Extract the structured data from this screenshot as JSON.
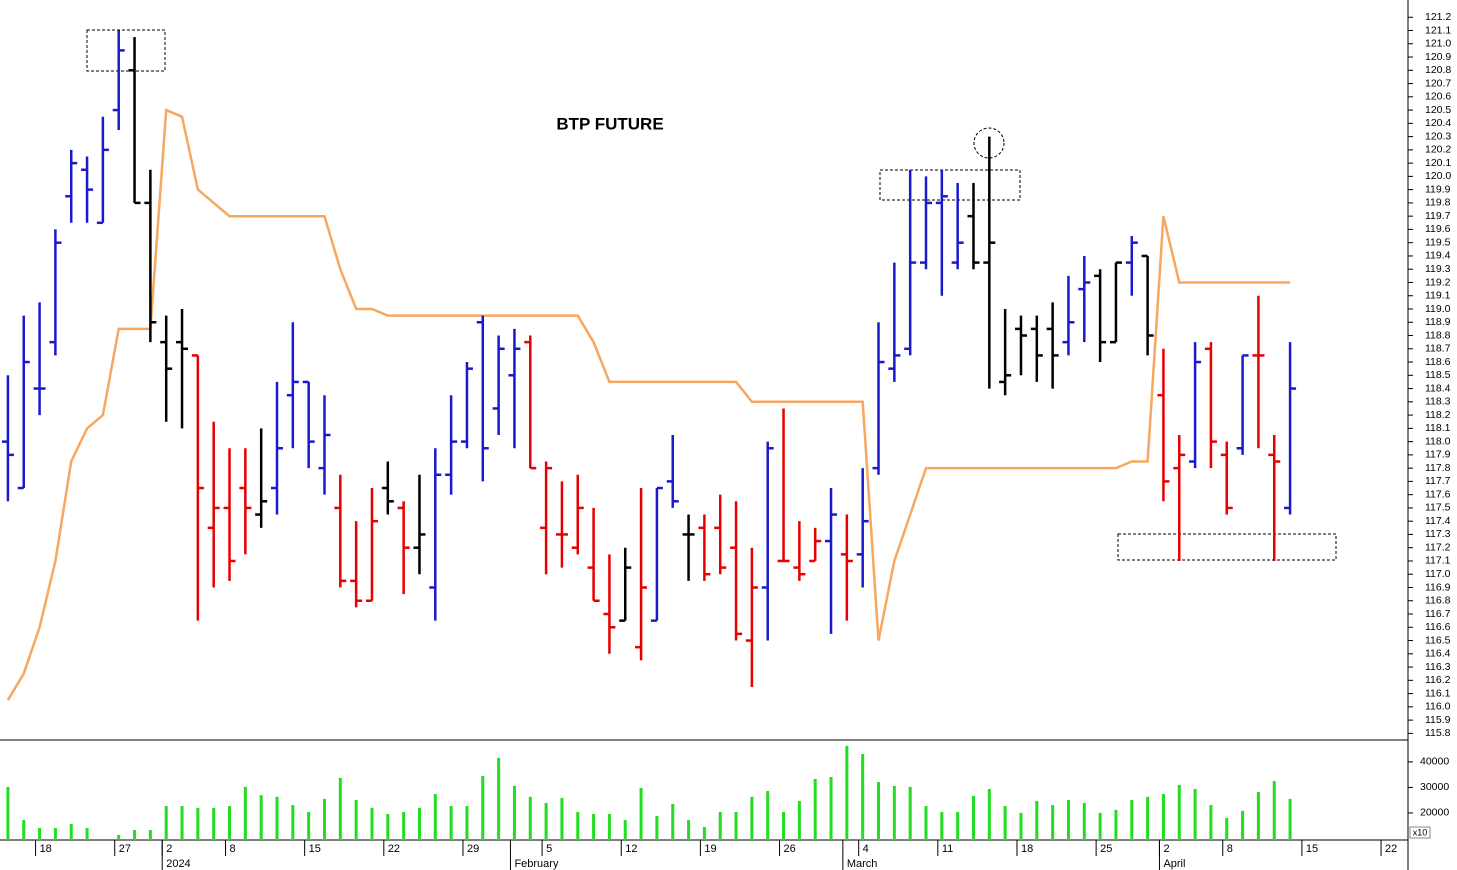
{
  "chart_data": [
    {
      "type": "ohlc",
      "title": "BTP FUTURE",
      "xlim": [
        -0.5,
        88.45
      ],
      "xticks": [
        {
          "value": 2,
          "label": "18"
        },
        {
          "value": 7,
          "label": "27"
        },
        {
          "value": 10,
          "label": "2"
        },
        {
          "value": 14,
          "label": "8"
        },
        {
          "value": 19,
          "label": "15"
        },
        {
          "value": 24,
          "label": "22"
        },
        {
          "value": 29,
          "label": "29"
        },
        {
          "value": 34,
          "label": "5"
        },
        {
          "value": 39,
          "label": "12"
        },
        {
          "value": 44,
          "label": "19"
        },
        {
          "value": 49,
          "label": "26"
        },
        {
          "value": 54,
          "label": "4"
        },
        {
          "value": 59,
          "label": "11"
        },
        {
          "value": 64,
          "label": "18"
        },
        {
          "value": 69,
          "label": "25"
        },
        {
          "value": 73,
          "label": "2"
        },
        {
          "value": 77,
          "label": "8"
        },
        {
          "value": 82,
          "label": "15"
        },
        {
          "value": 87,
          "label": "22"
        }
      ],
      "month_ticks": [
        {
          "value": 10,
          "label": "2024"
        },
        {
          "value": 32,
          "label": "February"
        },
        {
          "value": 53,
          "label": "March"
        },
        {
          "value": 73,
          "label": "April"
        }
      ],
      "ylim": [
        115.75,
        121.33
      ],
      "yticks": [
        115.8,
        115.9,
        {
          "value": 116.0,
          "label": "116.0"
        },
        116.1,
        116.2,
        116.3,
        116.4,
        116.5,
        116.6,
        116.7,
        116.8,
        116.9,
        {
          "value": 117.0,
          "label": "117.0"
        },
        117.1,
        117.2,
        117.3,
        117.4,
        117.5,
        117.6,
        117.7,
        117.8,
        117.9,
        {
          "value": 118.0,
          "label": "118.0"
        },
        118.1,
        118.2,
        118.3,
        118.4,
        118.5,
        118.6,
        118.7,
        118.8,
        118.9,
        {
          "value": 119.0,
          "label": "119.0"
        },
        119.1,
        119.2,
        119.3,
        119.4,
        119.5,
        119.6,
        119.7,
        119.8,
        119.9,
        {
          "value": 120.0,
          "label": "120.0"
        },
        120.1,
        120.2,
        120.3,
        120.4,
        120.5,
        120.6,
        120.7,
        120.8,
        120.9,
        {
          "value": 121.0,
          "label": "121.0"
        },
        121.1,
        121.2
      ],
      "open": [
        118.0,
        117.65,
        118.4,
        118.75,
        119.85,
        120.05,
        119.65,
        120.5,
        120.8,
        119.8,
        118.75,
        118.75,
        118.65,
        117.35,
        117.5,
        117.65,
        117.45,
        117.65,
        118.35,
        118.45,
        117.8,
        117.5,
        116.95,
        116.8,
        117.65,
        117.5,
        117.2,
        116.9,
        117.75,
        118.0,
        118.9,
        118.25,
        118.5,
        118.75,
        117.35,
        117.3,
        117.2,
        117.05,
        116.7,
        116.65,
        116.45,
        116.65,
        117.7,
        117.3,
        117.35,
        117.35,
        117.2,
        116.5,
        116.9,
        117.1,
        117.05,
        117.1,
        117.25,
        117.15,
        117.15,
        117.8,
        118.55,
        118.7,
        119.35,
        119.8,
        119.35,
        119.7,
        119.35,
        118.45,
        118.85,
        118.85,
        118.85,
        118.75,
        119.15,
        119.25,
        118.75,
        119.35,
        119.4,
        118.35,
        117.8,
        117.85,
        118.7,
        117.9,
        117.95,
        118.65,
        117.9,
        117.5
      ],
      "high": [
        118.5,
        118.95,
        119.05,
        119.6,
        120.2,
        120.15,
        120.45,
        121.1,
        121.05,
        120.05,
        118.95,
        119.0,
        118.65,
        118.15,
        117.95,
        117.95,
        118.1,
        118.45,
        118.9,
        118.45,
        118.35,
        117.75,
        117.4,
        117.65,
        117.85,
        117.55,
        117.75,
        117.95,
        118.35,
        118.6,
        118.95,
        118.8,
        118.85,
        118.8,
        117.85,
        117.7,
        117.75,
        117.5,
        117.15,
        117.2,
        117.65,
        117.65,
        118.05,
        117.45,
        117.45,
        117.6,
        117.55,
        117.2,
        118.0,
        118.25,
        117.4,
        117.35,
        117.65,
        117.45,
        117.8,
        118.9,
        119.35,
        120.05,
        120.0,
        120.05,
        119.95,
        119.95,
        120.3,
        119.0,
        118.95,
        118.95,
        119.05,
        119.25,
        119.4,
        119.3,
        119.35,
        119.55,
        119.4,
        118.7,
        118.05,
        118.75,
        118.75,
        118.0,
        118.65,
        119.1,
        118.05,
        118.75
      ],
      "low": [
        117.55,
        117.65,
        118.2,
        118.65,
        119.65,
        119.65,
        119.65,
        120.35,
        119.8,
        118.75,
        118.15,
        118.1,
        116.65,
        116.9,
        116.95,
        117.15,
        117.35,
        117.45,
        117.95,
        117.8,
        117.6,
        116.9,
        116.75,
        116.8,
        117.45,
        116.85,
        117.0,
        116.65,
        117.6,
        117.95,
        117.7,
        118.05,
        117.95,
        117.8,
        117.0,
        117.05,
        117.15,
        116.8,
        116.4,
        116.65,
        116.35,
        116.65,
        117.5,
        116.95,
        116.95,
        117.0,
        116.5,
        116.15,
        116.5,
        117.1,
        116.95,
        117.1,
        116.55,
        116.65,
        116.9,
        117.75,
        118.45,
        118.65,
        119.3,
        119.1,
        119.3,
        119.3,
        118.4,
        118.35,
        118.5,
        118.45,
        118.4,
        118.65,
        118.75,
        118.6,
        118.75,
        119.1,
        118.65,
        117.55,
        117.1,
        117.8,
        117.8,
        117.45,
        117.9,
        117.95,
        117.1,
        117.45
      ],
      "close": [
        117.9,
        118.6,
        118.4,
        119.5,
        120.1,
        119.9,
        120.2,
        120.95,
        119.8,
        118.9,
        118.55,
        118.7,
        117.65,
        117.5,
        117.1,
        117.5,
        117.55,
        117.95,
        118.45,
        118.0,
        118.05,
        116.95,
        116.8,
        117.4,
        117.55,
        117.2,
        117.3,
        117.75,
        118.0,
        118.55,
        117.95,
        118.7,
        118.7,
        117.8,
        117.8,
        117.3,
        117.5,
        116.8,
        116.6,
        117.05,
        116.9,
        117.65,
        117.55,
        117.3,
        117.0,
        117.05,
        116.55,
        116.9,
        117.95,
        117.1,
        117.0,
        117.25,
        117.45,
        117.1,
        117.4,
        118.6,
        118.65,
        119.35,
        119.8,
        119.85,
        119.5,
        119.35,
        119.5,
        118.5,
        118.8,
        118.65,
        118.65,
        118.9,
        119.2,
        118.75,
        119.35,
        119.5,
        118.8,
        117.7,
        117.9,
        118.6,
        118.0,
        117.5,
        118.65,
        118.65,
        117.85,
        118.4
      ],
      "bar_colors": [
        "#1a1acd",
        "#1a1acd",
        "#1a1acd",
        "#1a1acd",
        "#1a1acd",
        "#1a1acd",
        "#1a1acd",
        "#1a1acd",
        "#000000",
        "#000000",
        "#000000",
        "#000000",
        "#e60000",
        "#e60000",
        "#e60000",
        "#e60000",
        "#000000",
        "#1a1acd",
        "#1a1acd",
        "#1a1acd",
        "#1a1acd",
        "#e60000",
        "#e60000",
        "#e60000",
        "#000000",
        "#e60000",
        "#000000",
        "#1a1acd",
        "#1a1acd",
        "#1a1acd",
        "#1a1acd",
        "#1a1acd",
        "#1a1acd",
        "#e60000",
        "#e60000",
        "#e60000",
        "#e60000",
        "#e60000",
        "#e60000",
        "#000000",
        "#e60000",
        "#1a1acd",
        "#1a1acd",
        "#000000",
        "#e60000",
        "#e60000",
        "#e60000",
        "#e60000",
        "#1a1acd",
        "#e60000",
        "#e60000",
        "#e60000",
        "#1a1acd",
        "#e60000",
        "#1a1acd",
        "#1a1acd",
        "#1a1acd",
        "#1a1acd",
        "#1a1acd",
        "#1a1acd",
        "#1a1acd",
        "#000000",
        "#000000",
        "#000000",
        "#000000",
        "#000000",
        "#000000",
        "#1a1acd",
        "#1a1acd",
        "#000000",
        "#000000",
        "#1a1acd",
        "#000000",
        "#e60000",
        "#e60000",
        "#1a1acd",
        "#e60000",
        "#e60000",
        "#1a1acd",
        "#e60000",
        "#e60000",
        "#1a1acd"
      ],
      "line": {
        "color": "#f7a760",
        "values": [
          116.05,
          116.25,
          116.6,
          117.1,
          117.85,
          118.1,
          118.2,
          118.85,
          118.85,
          118.85,
          120.5,
          120.45,
          119.9,
          119.8,
          119.7,
          119.7,
          119.7,
          119.7,
          119.7,
          119.7,
          119.7,
          119.3,
          119.0,
          119.0,
          118.95,
          118.95,
          118.95,
          118.95,
          118.95,
          118.95,
          118.95,
          118.95,
          118.95,
          118.95,
          118.95,
          118.95,
          118.95,
          118.75,
          118.45,
          118.45,
          118.45,
          118.45,
          118.45,
          118.45,
          118.45,
          118.45,
          118.45,
          118.3,
          118.3,
          118.3,
          118.3,
          118.3,
          118.3,
          118.3,
          118.3,
          116.5,
          117.1,
          117.45,
          117.8,
          117.8,
          117.8,
          117.8,
          117.8,
          117.8,
          117.8,
          117.8,
          117.8,
          117.8,
          117.8,
          117.8,
          117.8,
          117.85,
          117.85,
          119.7,
          119.2,
          119.2,
          119.2,
          119.2,
          119.2,
          119.2,
          119.2,
          119.2
        ]
      }
    },
    {
      "type": "bar",
      "color": "#22dd22",
      "unit_note": "x10",
      "ylim": [
        9400,
        48200
      ],
      "yticks": [
        20000,
        30000,
        40000
      ],
      "values": [
        30200,
        17200,
        14100,
        14100,
        15700,
        14100,
        null,
        11400,
        13300,
        13300,
        22700,
        22700,
        22000,
        22000,
        22700,
        30200,
        27000,
        26300,
        23100,
        20400,
        25500,
        33700,
        25100,
        22000,
        19600,
        20400,
        22000,
        27400,
        22700,
        22700,
        34500,
        41600,
        30600,
        26300,
        23900,
        25900,
        20400,
        19600,
        19600,
        17200,
        29800,
        18800,
        23500,
        17200,
        14500,
        20400,
        20400,
        26300,
        28600,
        20400,
        24700,
        33300,
        34100,
        46300,
        43100,
        32100,
        30600,
        30200,
        22700,
        20400,
        20400,
        26700,
        29400,
        22700,
        20000,
        24700,
        23100,
        25100,
        23900,
        20000,
        21200,
        25100,
        26300,
        27400,
        31000,
        29400,
        23100,
        18000,
        20800,
        28200,
        32500,
        25500
      ]
    }
  ]
}
